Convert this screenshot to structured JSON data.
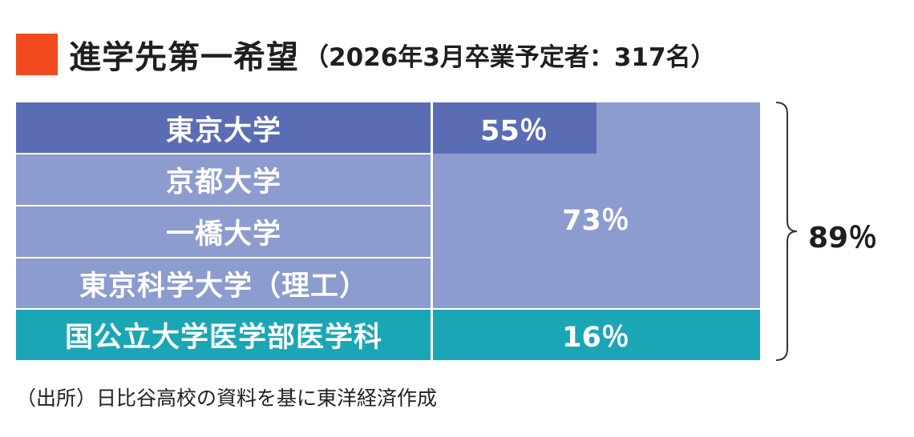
{
  "title": {
    "main": "進学先第一希望",
    "sub": "（2026年3月卒業予定者：317名）"
  },
  "colors": {
    "title_mark": "#f04a1e",
    "dark_blue": "#5a6db4",
    "light_blue": "#8d9cce",
    "teal": "#1aa6b5"
  },
  "chart_data": {
    "type": "table",
    "title": "進学先第一希望（2026年3月卒業予定者：317名）",
    "rows": [
      {
        "label": "東京大学",
        "value": "55％",
        "group": "東京大学"
      },
      {
        "label": "京都大学",
        "value": "73％",
        "group": "東京大学・京都大学・一橋大学・東京科学大学（理工）"
      },
      {
        "label": "一橋大学",
        "value": "73％",
        "group": "東京大学・京都大学・一橋大学・東京科学大学（理工）"
      },
      {
        "label": "東京科学大学（理工）",
        "value": "73％",
        "group": "東京大学・京都大学・一橋大学・東京科学大学（理工）"
      },
      {
        "label": "国公立大学医学部医学科",
        "value": "16％",
        "group": "国公立大学医学部医学科"
      }
    ],
    "values": [
      {
        "group": "東京大学",
        "percent": 55,
        "label": "55％"
      },
      {
        "group": "東京大学〜東京科学大学（理工）",
        "percent": 73,
        "label": "73％"
      },
      {
        "group": "国公立大学医学部医学科",
        "percent": 16,
        "label": "16％"
      },
      {
        "group": "合計",
        "percent": 89,
        "label": "89％"
      }
    ],
    "total_label": "89％",
    "source": "（出所）日比谷高校の資料を基に東洋経済作成"
  }
}
